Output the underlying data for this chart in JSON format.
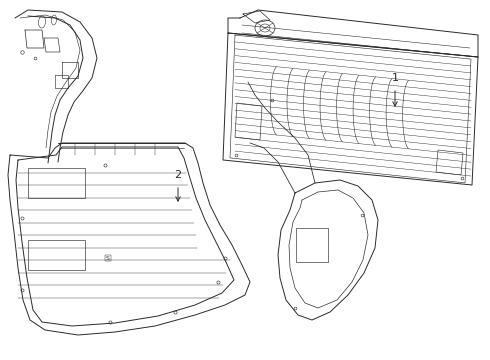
{
  "background_color": "#ffffff",
  "line_color": "#2a2a2a",
  "line_width": 0.7,
  "label1": "1",
  "label2": "2"
}
